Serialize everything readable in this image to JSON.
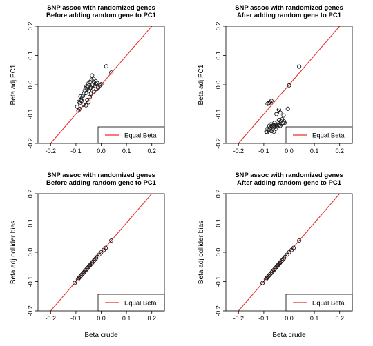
{
  "chart_data": [
    {
      "type": "scatter",
      "title": "SNP assoc with randomized genes",
      "subtitle": "Before adding random gene to PC1",
      "xlabel": "",
      "ylabel": "Beta adj PC1",
      "xlim": [
        -0.25,
        0.25
      ],
      "ylim": [
        -0.2,
        0.2
      ],
      "xticks": [
        -0.2,
        -0.1,
        0.0,
        0.1,
        0.2
      ],
      "yticks": [
        -0.2,
        -0.1,
        0.0,
        0.1,
        0.2
      ],
      "xticklabels": [
        "-0.2",
        "-0.1",
        "0.0",
        "0.1",
        "0.2"
      ],
      "yticklabels": [
        "-0.2",
        "-0.1",
        "0.0",
        "0.1",
        "0.2"
      ],
      "legend": {
        "position": "bottom-right",
        "entries": [
          {
            "label": "Equal Beta",
            "color": "#e8302f"
          }
        ]
      },
      "reference_line": "y = x",
      "series": [
        {
          "points": [
            [
              -0.095,
              -0.075
            ],
            [
              -0.088,
              -0.058
            ],
            [
              -0.085,
              -0.062
            ],
            [
              -0.082,
              -0.04
            ],
            [
              -0.08,
              -0.05
            ],
            [
              -0.078,
              -0.055
            ],
            [
              -0.075,
              -0.045
            ],
            [
              -0.072,
              -0.038
            ],
            [
              -0.068,
              -0.03
            ],
            [
              -0.065,
              -0.02
            ],
            [
              -0.062,
              -0.012
            ],
            [
              -0.06,
              -0.028
            ],
            [
              -0.058,
              -0.005
            ],
            [
              -0.055,
              -0.015
            ],
            [
              -0.052,
              -0.008
            ],
            [
              -0.05,
              0.005
            ],
            [
              -0.048,
              -0.02
            ],
            [
              -0.046,
              -0.002
            ],
            [
              -0.044,
              0.01
            ],
            [
              -0.042,
              -0.01
            ],
            [
              -0.04,
              -0.03
            ],
            [
              -0.038,
              0.018
            ],
            [
              -0.036,
              0.032
            ],
            [
              -0.034,
              0.0
            ],
            [
              -0.032,
              -0.012
            ],
            [
              -0.03,
              0.02
            ],
            [
              -0.028,
              0.008
            ],
            [
              -0.025,
              -0.005
            ],
            [
              -0.022,
              0.012
            ],
            [
              -0.02,
              0.002
            ],
            [
              -0.018,
              -0.015
            ],
            [
              -0.016,
              0.006
            ],
            [
              -0.05,
              -0.06
            ],
            [
              -0.06,
              -0.07
            ],
            [
              -0.07,
              -0.068
            ],
            [
              -0.085,
              -0.082
            ],
            [
              -0.09,
              -0.088
            ],
            [
              -0.055,
              -0.052
            ],
            [
              -0.03,
              -0.025
            ],
            [
              -0.012,
              -0.01
            ],
            [
              -0.005,
              -0.002
            ],
            [
              0.0,
              0.002
            ],
            [
              0.04,
              0.042
            ],
            [
              0.02,
              0.063
            ],
            [
              -0.045,
              -0.042
            ]
          ]
        }
      ]
    },
    {
      "type": "scatter",
      "title": "SNP assoc with randomized genes",
      "subtitle": "After adding random gene to PC1",
      "xlabel": "",
      "ylabel": "Beta adj PC1",
      "xlim": [
        -0.25,
        0.25
      ],
      "ylim": [
        -0.2,
        0.2
      ],
      "xticks": [
        -0.2,
        -0.1,
        0.0,
        0.1,
        0.2
      ],
      "yticks": [
        -0.2,
        -0.1,
        0.0,
        0.1,
        0.2
      ],
      "xticklabels": [
        "-0.2",
        "-0.1",
        "0.0",
        "0.1",
        "0.2"
      ],
      "yticklabels": [
        "-0.2",
        "-0.1",
        "0.0",
        "0.1",
        "0.2"
      ],
      "legend": {
        "position": "bottom-right",
        "entries": [
          {
            "label": "Equal Beta",
            "color": "#e8302f"
          }
        ]
      },
      "reference_line": "y = x",
      "series": [
        {
          "points": [
            [
              -0.09,
              -0.16
            ],
            [
              -0.085,
              -0.15
            ],
            [
              -0.08,
              -0.155
            ],
            [
              -0.078,
              -0.14
            ],
            [
              -0.075,
              -0.148
            ],
            [
              -0.072,
              -0.135
            ],
            [
              -0.07,
              -0.158
            ],
            [
              -0.068,
              -0.142
            ],
            [
              -0.065,
              -0.15
            ],
            [
              -0.062,
              -0.138
            ],
            [
              -0.06,
              -0.145
            ],
            [
              -0.058,
              -0.13
            ],
            [
              -0.055,
              -0.14
            ],
            [
              -0.052,
              -0.15
            ],
            [
              -0.05,
              -0.135
            ],
            [
              -0.048,
              -0.142
            ],
            [
              -0.045,
              -0.128
            ],
            [
              -0.042,
              -0.138
            ],
            [
              -0.04,
              -0.12
            ],
            [
              -0.038,
              -0.132
            ],
            [
              -0.035,
              -0.14
            ],
            [
              -0.032,
              -0.125
            ],
            [
              -0.03,
              -0.135
            ],
            [
              -0.028,
              -0.118
            ],
            [
              -0.025,
              -0.13
            ],
            [
              -0.022,
              -0.105
            ],
            [
              -0.02,
              -0.125
            ],
            [
              -0.018,
              -0.13
            ],
            [
              -0.05,
              -0.1
            ],
            [
              -0.045,
              -0.09
            ],
            [
              -0.04,
              -0.085
            ],
            [
              -0.035,
              -0.095
            ],
            [
              -0.085,
              -0.065
            ],
            [
              -0.08,
              -0.062
            ],
            [
              -0.075,
              -0.06
            ],
            [
              -0.07,
              -0.055
            ],
            [
              -0.088,
              -0.162
            ],
            [
              -0.06,
              -0.16
            ],
            [
              -0.005,
              -0.082
            ],
            [
              0.0,
              -0.002
            ],
            [
              0.04,
              0.062
            ]
          ]
        }
      ]
    },
    {
      "type": "scatter",
      "title": "SNP assoc with randomized genes",
      "subtitle": "Before adding random gene to PC1",
      "xlabel": "Beta crude",
      "ylabel": "Beta adj collider bias",
      "xlim": [
        -0.25,
        0.25
      ],
      "ylim": [
        -0.2,
        0.2
      ],
      "xticks": [
        -0.2,
        -0.1,
        0.0,
        0.1,
        0.2
      ],
      "yticks": [
        -0.2,
        -0.1,
        0.0,
        0.1,
        0.2
      ],
      "xticklabels": [
        "-0.2",
        "-0.1",
        "0.0",
        "0.1",
        "0.2"
      ],
      "yticklabels": [
        "-0.2",
        "-0.1",
        "0.0",
        "0.1",
        "0.2"
      ],
      "legend": {
        "position": "bottom-right",
        "entries": [
          {
            "label": "Equal Beta",
            "color": "#e8302f"
          }
        ]
      },
      "reference_line": "y = x",
      "series": [
        {
          "points": [
            [
              -0.105,
              -0.105
            ],
            [
              -0.092,
              -0.092
            ],
            [
              -0.088,
              -0.088
            ],
            [
              -0.084,
              -0.084
            ],
            [
              -0.08,
              -0.08
            ],
            [
              -0.076,
              -0.076
            ],
            [
              -0.072,
              -0.072
            ],
            [
              -0.068,
              -0.068
            ],
            [
              -0.064,
              -0.064
            ],
            [
              -0.06,
              -0.06
            ],
            [
              -0.056,
              -0.056
            ],
            [
              -0.052,
              -0.052
            ],
            [
              -0.048,
              -0.048
            ],
            [
              -0.044,
              -0.044
            ],
            [
              -0.04,
              -0.04
            ],
            [
              -0.036,
              -0.036
            ],
            [
              -0.032,
              -0.032
            ],
            [
              -0.028,
              -0.028
            ],
            [
              -0.024,
              -0.024
            ],
            [
              -0.02,
              -0.02
            ],
            [
              -0.015,
              -0.015
            ],
            [
              -0.008,
              -0.008
            ],
            [
              0.0,
              0.0
            ],
            [
              0.01,
              0.008
            ],
            [
              0.018,
              0.015
            ],
            [
              0.04,
              0.04
            ]
          ]
        }
      ]
    },
    {
      "type": "scatter",
      "title": "SNP assoc with randomized genes",
      "subtitle": "After adding random gene to PC1",
      "xlabel": "Beta crude",
      "ylabel": "Beta adj collider bias",
      "xlim": [
        -0.25,
        0.25
      ],
      "ylim": [
        -0.2,
        0.2
      ],
      "xticks": [
        -0.2,
        -0.1,
        0.0,
        0.1,
        0.2
      ],
      "yticks": [
        -0.2,
        -0.1,
        0.0,
        0.1,
        0.2
      ],
      "xticklabels": [
        "-0.2",
        "-0.1",
        "0.0",
        "0.1",
        "0.2"
      ],
      "yticklabels": [
        "-0.2",
        "-0.1",
        "0.0",
        "0.1",
        "0.2"
      ],
      "legend": {
        "position": "bottom-right",
        "entries": [
          {
            "label": "Equal Beta",
            "color": "#e8302f"
          }
        ]
      },
      "reference_line": "y = x",
      "series": [
        {
          "points": [
            [
              -0.105,
              -0.105
            ],
            [
              -0.092,
              -0.092
            ],
            [
              -0.088,
              -0.088
            ],
            [
              -0.084,
              -0.084
            ],
            [
              -0.08,
              -0.08
            ],
            [
              -0.076,
              -0.076
            ],
            [
              -0.072,
              -0.072
            ],
            [
              -0.068,
              -0.068
            ],
            [
              -0.064,
              -0.064
            ],
            [
              -0.06,
              -0.06
            ],
            [
              -0.056,
              -0.056
            ],
            [
              -0.052,
              -0.052
            ],
            [
              -0.048,
              -0.048
            ],
            [
              -0.044,
              -0.044
            ],
            [
              -0.04,
              -0.04
            ],
            [
              -0.036,
              -0.036
            ],
            [
              -0.032,
              -0.032
            ],
            [
              -0.028,
              -0.028
            ],
            [
              -0.024,
              -0.024
            ],
            [
              -0.02,
              -0.02
            ],
            [
              -0.015,
              -0.015
            ],
            [
              -0.008,
              -0.008
            ],
            [
              0.0,
              0.0
            ],
            [
              0.01,
              0.008
            ],
            [
              0.018,
              0.015
            ],
            [
              0.04,
              0.04
            ]
          ]
        }
      ]
    }
  ]
}
